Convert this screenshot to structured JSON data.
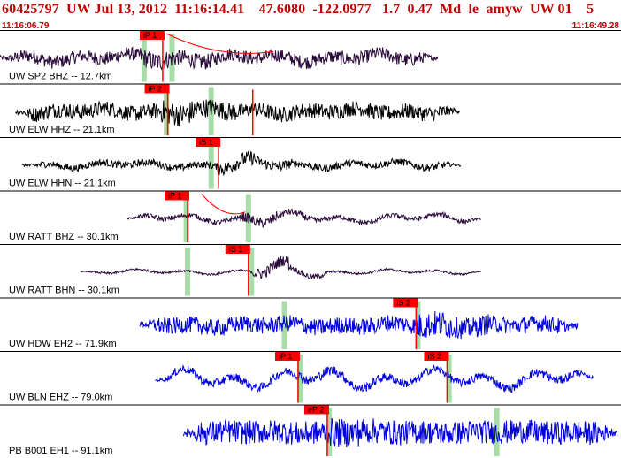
{
  "header": {
    "title": "60425797  UW Jul 13, 2012  11:16:14.41    47.6080  -122.0977   1.7  0.47  Md  le  amyw  UW 01    5",
    "time_start": "11:16:06.79",
    "time_end": "11:16:49.28"
  },
  "colors": {
    "header_text": "#c00000",
    "trace_dark": "#2a0a3a",
    "trace_black": "#000000",
    "trace_blue": "#0000dd",
    "pick_box": "#ff0000",
    "pick_window": "#a8dca8",
    "separator": "#000000"
  },
  "traces": [
    {
      "label": "UW SP2 BHZ -- 12.7km",
      "color": "trace_dark",
      "start": 0.0,
      "end": 0.705,
      "amp": 0.55,
      "noise": 0.6,
      "picks": [
        {
          "label": "iP 1",
          "t": 0.225
        }
      ],
      "windows": [
        0.232,
        0.277
      ],
      "onset": 0.225,
      "onset_gain": 1.4,
      "arcs": [
        {
          "from": 0.268,
          "to": 0.44
        }
      ]
    },
    {
      "label": "UW ELW HHZ -- 21.1km",
      "color": "trace_black",
      "start": 0.025,
      "end": 0.74,
      "amp": 0.55,
      "noise": 0.7,
      "picks": [
        {
          "label": "iP 2",
          "t": 0.233
        },
        {
          "label": "",
          "t": 0.37
        }
      ],
      "windows": [
        0.268,
        0.34
      ],
      "onset": 0.26,
      "onset_gain": 1.5,
      "arcs": []
    },
    {
      "label": "UW ELW HHN -- 21.1km",
      "color": "trace_black",
      "start": 0.035,
      "end": 0.742,
      "amp": 0.35,
      "noise": 0.5,
      "picks": [
        {
          "label": "iS 1",
          "t": 0.315
        }
      ],
      "windows": [
        0.34
      ],
      "onset": 0.35,
      "onset_gain": 2.0,
      "arcs": []
    },
    {
      "label": "UW RATT BHZ -- 30.1km",
      "color": "trace_dark",
      "start": 0.205,
      "end": 0.775,
      "amp": 0.35,
      "noise": 0.35,
      "picks": [
        {
          "label": "iP 1",
          "t": 0.265
        }
      ],
      "windows": [
        0.3,
        0.4
      ],
      "onset": 0.39,
      "onset_gain": 2.0,
      "arcs": [
        {
          "from": 0.325,
          "to": 0.395
        }
      ]
    },
    {
      "label": "UW RATT BHN -- 30.1km",
      "color": "trace_dark",
      "start": 0.13,
      "end": 0.775,
      "amp": 0.18,
      "noise": 0.3,
      "picks": [
        {
          "label": "iS 1",
          "t": 0.363
        }
      ],
      "windows": [
        0.302,
        0.405
      ],
      "onset": 0.405,
      "onset_gain": 5.0,
      "arcs": []
    },
    {
      "label": "UW HDW EH2 -- 71.9km",
      "color": "trace_blue",
      "start": 0.225,
      "end": 0.93,
      "amp": 0.55,
      "noise": 0.75,
      "picks": [
        {
          "label": "iS 2",
          "t": 0.633
        }
      ],
      "windows": [
        0.458,
        0.673
      ],
      "onset": 0.67,
      "onset_gain": 1.6,
      "arcs": []
    },
    {
      "label": "UW BLN EHZ -- 79.0km",
      "color": "trace_blue",
      "start": 0.25,
      "end": 0.955,
      "amp": 0.7,
      "noise": 0.3,
      "picks": [
        {
          "label": "iP 1",
          "t": 0.443
        },
        {
          "label": "iS 2",
          "t": 0.683
        }
      ],
      "windows": [
        0.483,
        0.723
      ],
      "onset": 0.48,
      "onset_gain": 1.2,
      "arcs": []
    },
    {
      "label": "PB B001 EH1 -- 91.1km",
      "color": "trace_blue",
      "start": 0.295,
      "end": 0.995,
      "amp": 0.65,
      "noise": 0.9,
      "picks": [
        {
          "label": "eP 2",
          "t": 0.49
        }
      ],
      "windows": [
        0.53,
        0.8
      ],
      "onset": 0.53,
      "onset_gain": 1.2,
      "arcs": []
    }
  ]
}
